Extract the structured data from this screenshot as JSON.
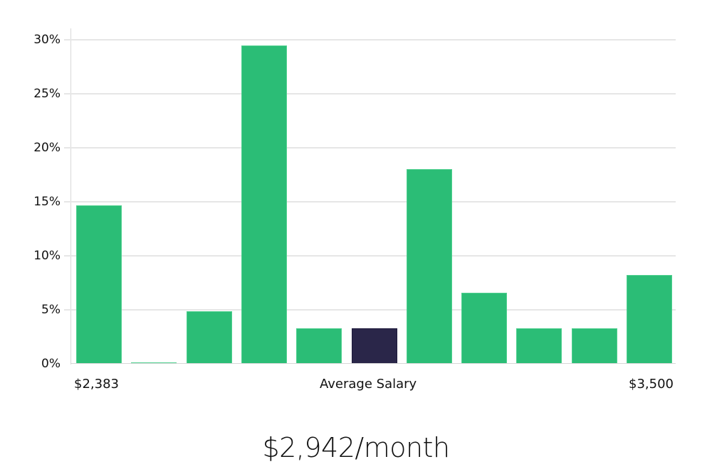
{
  "chart_data": {
    "type": "bar",
    "title": "",
    "xlabel": "Average Salary",
    "ylabel": "",
    "x_range_labels": {
      "min": "$2,383",
      "max": "$3,500"
    },
    "categories": [
      "bin1",
      "bin2",
      "bin3",
      "bin4",
      "bin5",
      "bin6",
      "bin7",
      "bin8",
      "bin9",
      "bin10",
      "bin11"
    ],
    "values": [
      14.7,
      0.1,
      4.9,
      29.5,
      3.3,
      3.3,
      18.0,
      6.6,
      3.3,
      3.3,
      8.2
    ],
    "highlight_index": 5,
    "ylim": [
      0,
      30
    ],
    "yticks": [
      "0%",
      "5%",
      "10%",
      "15%",
      "20%",
      "25%",
      "30%"
    ],
    "grid": true,
    "legend": "none",
    "colors": {
      "bar": "#2bbd76",
      "highlight": "#2a2649",
      "grid": "#e6e6e6"
    }
  },
  "summary": {
    "average_label": "$2,942/month"
  }
}
